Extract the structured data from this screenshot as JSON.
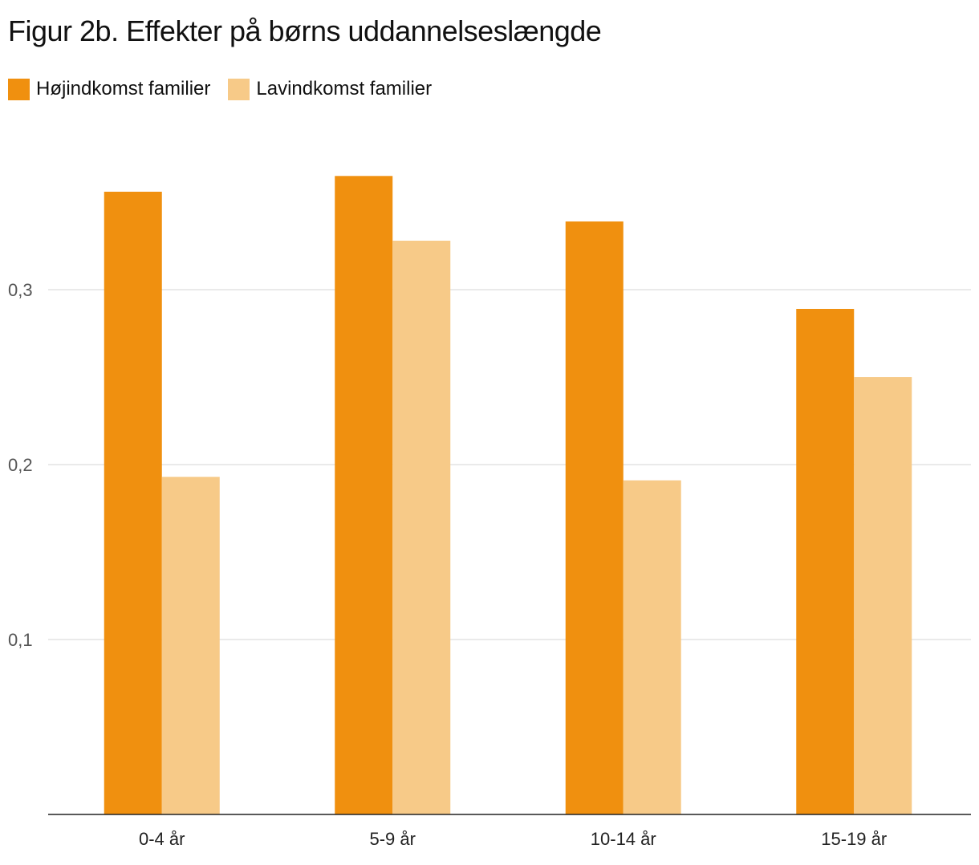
{
  "chart_data": {
    "type": "bar",
    "title": "Figur 2b. Effekter på børns uddannelseslængde",
    "xlabel": "",
    "ylabel": "",
    "categories": [
      "0-4 år",
      "5-9 år",
      "10-14 år",
      "15-19 år"
    ],
    "series": [
      {
        "name": "Højindkomst familier",
        "color": "#f0900f",
        "values": [
          0.356,
          0.365,
          0.339,
          0.289
        ]
      },
      {
        "name": "Lavindkomst familier",
        "color": "#f7ca88",
        "values": [
          0.193,
          0.328,
          0.191,
          0.25
        ]
      }
    ],
    "ylim": [
      0.0,
      0.4
    ],
    "yticks": [
      0.1,
      0.2,
      0.3
    ],
    "ytick_labels": [
      "0,1",
      "0,2",
      "0,3"
    ],
    "grid": true,
    "legend_position": "top-left"
  }
}
